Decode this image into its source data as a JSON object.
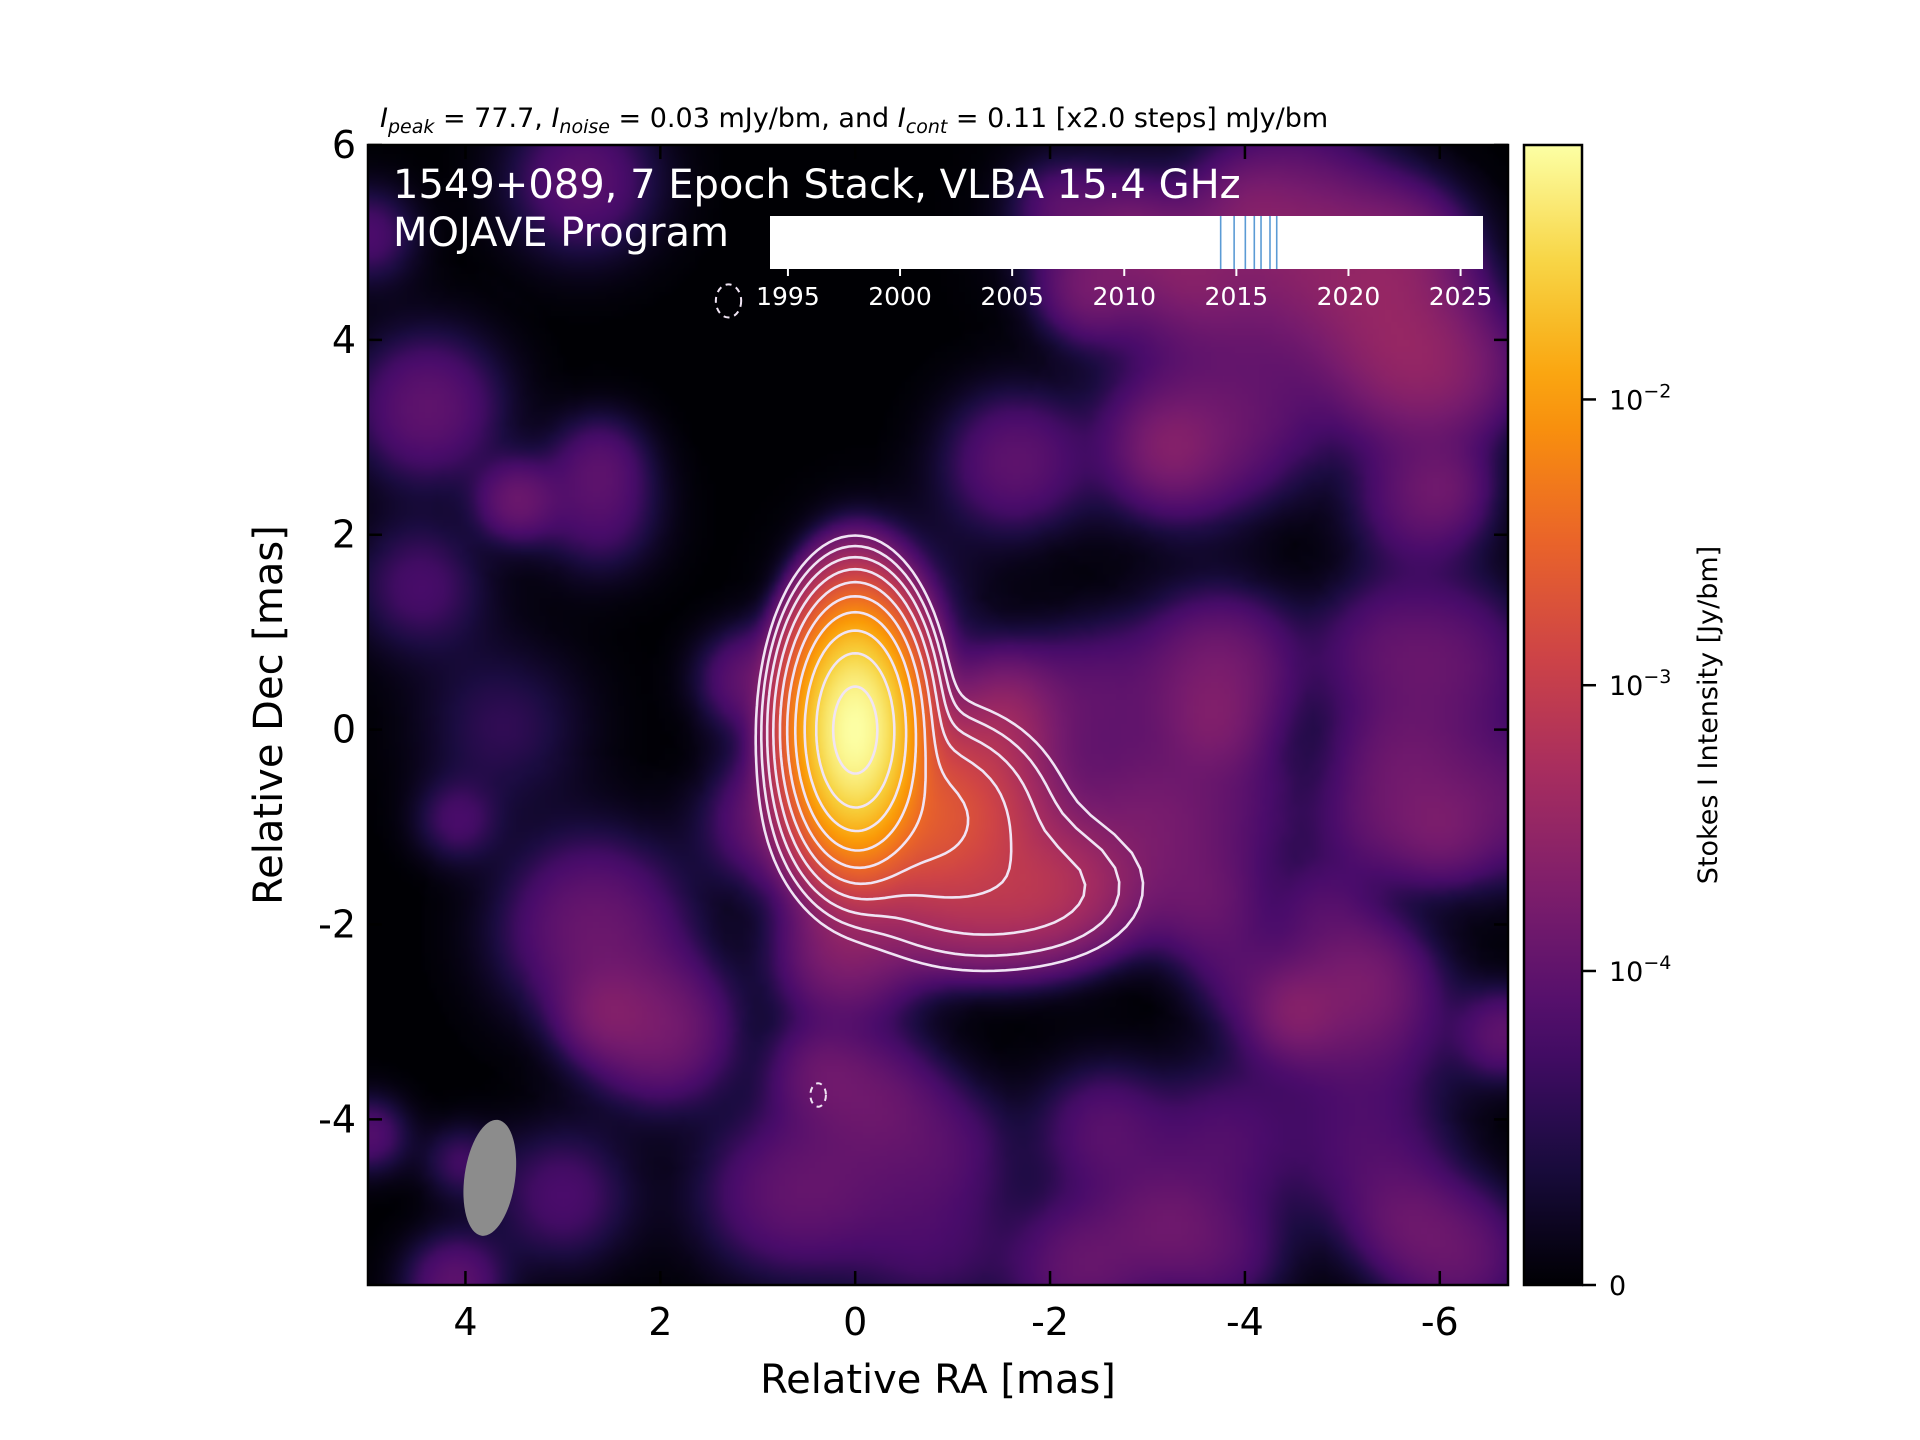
{
  "chart_data": {
    "type": "heatmap",
    "header": {
      "peak_sym": "I",
      "peak_sub": "peak",
      "peak_text": " = 77.7, ",
      "noise_sym": "I",
      "noise_sub": "noise",
      "noise_text": " = 0.03 mJy/bm, and ",
      "cont_sym": "I",
      "cont_sub": "cont",
      "cont_text": " = 0.11 [x2.0 steps] mJy/bm"
    },
    "title_line1": "1549+089, 7 Epoch Stack, VLBA 15.4 GHz",
    "title_line2": "MOJAVE Program",
    "xlabel": "Relative RA [mas]",
    "ylabel": "Relative Dec [mas]",
    "xlim": [
      5,
      -6.7
    ],
    "ylim": [
      -5.7,
      6
    ],
    "xticks": [
      4,
      2,
      0,
      -2,
      -4,
      -6
    ],
    "xtick_labels": [
      "4",
      "2",
      "0",
      "-2",
      "-4",
      "-6"
    ],
    "yticks": [
      6,
      4,
      2,
      0,
      -2,
      -4
    ],
    "ytick_labels": [
      "6",
      "4",
      "2",
      "0",
      "-2",
      "-4"
    ],
    "colormap": [
      "#000004",
      "#1b0c41",
      "#4a0c6b",
      "#781c6d",
      "#a52c60",
      "#cf4446",
      "#ed6925",
      "#fb9b06",
      "#f7d13d",
      "#fcffa4"
    ],
    "colorbar": {
      "label": "Stokes I Intensity [Jy/bm]",
      "ticks": [
        {
          "value": 0.01,
          "base": "10",
          "exp": "−2"
        },
        {
          "value": 0.001,
          "base": "10",
          "exp": "−3"
        },
        {
          "value": 0.0001,
          "base": "10",
          "exp": "−4"
        },
        {
          "value": 0,
          "label": "0"
        }
      ],
      "max": 0.0777
    },
    "peak_jy": 0.0777,
    "components": [
      {
        "ra": 0.0,
        "dec": 0.0,
        "flux": 0.0777,
        "sigma_ra": 0.28,
        "sigma_dec": 0.55
      },
      {
        "ra": -0.7,
        "dec": -0.9,
        "flux": 0.0023,
        "sigma_ra": 0.6,
        "sigma_dec": 0.5
      },
      {
        "ra": -2.0,
        "dec": -1.6,
        "flux": 0.00048,
        "sigma_ra": 0.55,
        "sigma_dec": 0.4
      },
      {
        "ra": -1.2,
        "dec": -1.9,
        "flux": 0.00032,
        "sigma_ra": 0.6,
        "sigma_dec": 0.35
      }
    ],
    "contour_levels_jy": [
      0.00011,
      0.00022,
      0.00044,
      0.00088,
      0.00176,
      0.00352,
      0.00704,
      0.01408,
      0.02816,
      0.05632
    ],
    "negative_contours": [
      {
        "ra": 0.38,
        "dec": -3.75,
        "r_ra": 0.08,
        "r_dec": 0.12
      },
      {
        "ra": 1.3,
        "dec": 4.4,
        "r_ra": 0.13,
        "r_dec": 0.17
      }
    ],
    "beam": {
      "ra": 3.75,
      "dec": -4.6,
      "major": 1.2,
      "minor": 0.52,
      "color": "#8c8c8c"
    },
    "contour_color": "#f0e4f4",
    "inset": {
      "xlim": [
        1994.2,
        2026.0
      ],
      "ticks": [
        1995,
        2000,
        2005,
        2010,
        2015,
        2020,
        2025
      ],
      "tick_labels": [
        "1995",
        "2000",
        "2005",
        "2010",
        "2015",
        "2020",
        "2025"
      ],
      "epochs": [
        2014.3,
        2014.9,
        2015.4,
        2015.8,
        2016.1,
        2016.5,
        2016.8
      ],
      "epoch_color": "#5b9bd5"
    }
  }
}
